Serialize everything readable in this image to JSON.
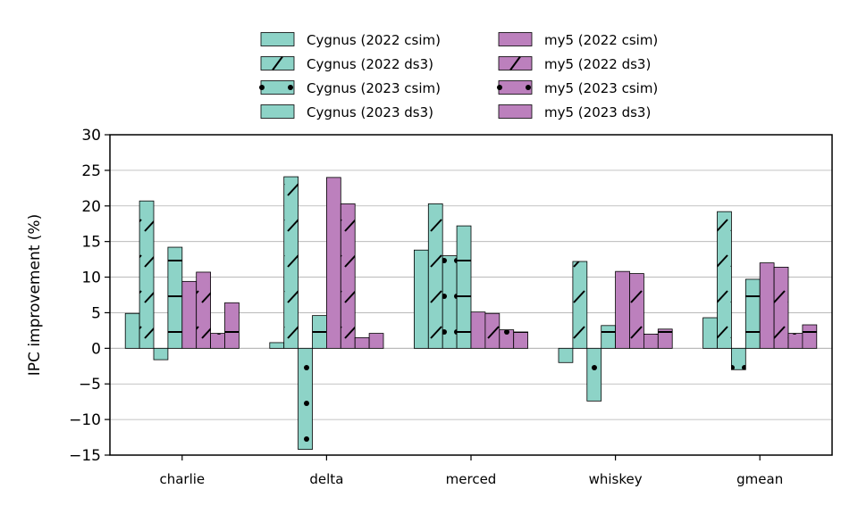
{
  "chart_data": {
    "type": "bar",
    "ylabel": "IPC improvement (%)",
    "ylim": [
      -15,
      30
    ],
    "yticks": [
      -15,
      -10,
      -5,
      0,
      5,
      10,
      15,
      20,
      25,
      30
    ],
    "grid": "horizontal",
    "legend_position": "top-center",
    "categories": [
      "charlie",
      "delta",
      "merced",
      "whiskey",
      "gmean"
    ],
    "series": [
      {
        "name": "Cygnus (2022 csim)",
        "color": "#8dd3c7",
        "pattern": "none",
        "values": [
          4.9,
          0.8,
          13.8,
          -2.0,
          4.3
        ]
      },
      {
        "name": "Cygnus (2022 ds3)",
        "color": "#8dd3c7",
        "pattern": "slash",
        "values": [
          20.7,
          24.1,
          20.3,
          12.2,
          19.2
        ]
      },
      {
        "name": "Cygnus (2023 csim)",
        "color": "#8dd3c7",
        "pattern": "dots",
        "values": [
          -1.6,
          -14.2,
          13.0,
          -7.4,
          -3.0
        ]
      },
      {
        "name": "Cygnus (2023 ds3)",
        "color": "#8dd3c7",
        "pattern": "dash",
        "values": [
          14.2,
          4.6,
          17.2,
          3.2,
          9.7
        ]
      },
      {
        "name": "my5 (2022 csim)",
        "color": "#bc80bd",
        "pattern": "none",
        "values": [
          9.4,
          24.0,
          5.1,
          10.8,
          12.0
        ]
      },
      {
        "name": "my5 (2022 ds3)",
        "color": "#bc80bd",
        "pattern": "slash",
        "values": [
          10.7,
          20.3,
          4.9,
          10.5,
          11.4
        ]
      },
      {
        "name": "my5 (2023 csim)",
        "color": "#bc80bd",
        "pattern": "dots",
        "values": [
          2.1,
          1.5,
          2.6,
          2.0,
          2.1
        ]
      },
      {
        "name": "my5 (2023 ds3)",
        "color": "#bc80bd",
        "pattern": "dash",
        "values": [
          6.4,
          2.1,
          2.3,
          2.7,
          3.3
        ]
      }
    ]
  }
}
